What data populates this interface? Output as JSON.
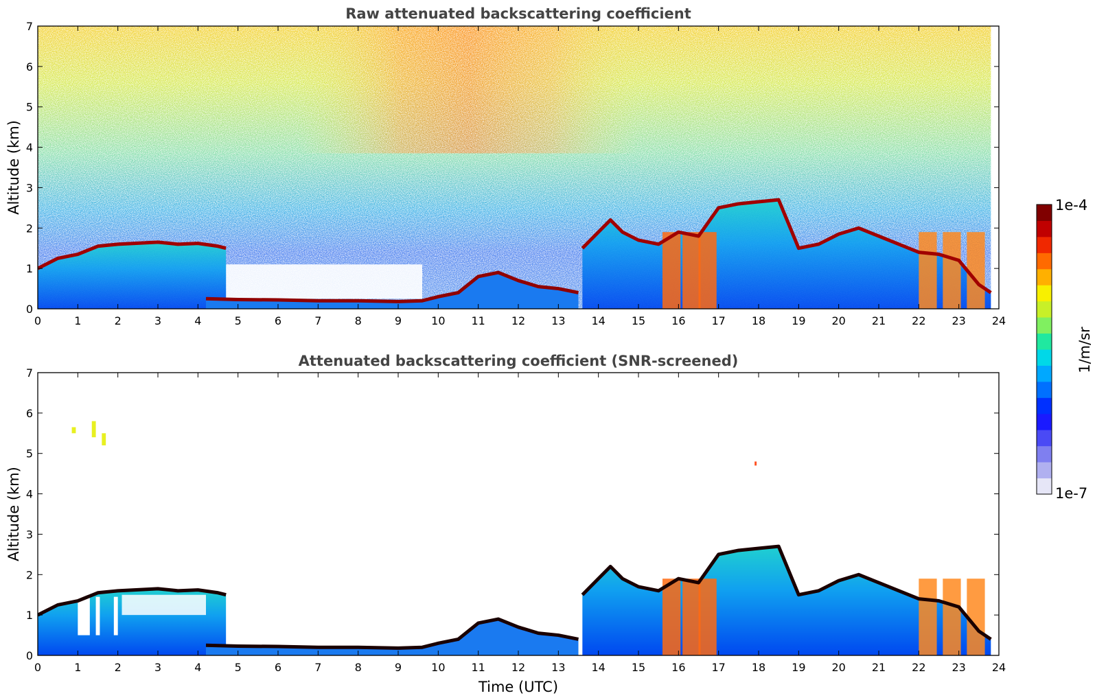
{
  "chart_data": [
    {
      "type": "heatmap",
      "title": "Raw attenuated backscattering coefficient",
      "xlabel": "",
      "ylabel": "Altitude (km)",
      "xlim": [
        0,
        24
      ],
      "ylim": [
        0,
        7
      ],
      "xticks": [
        0,
        1,
        2,
        3,
        4,
        5,
        6,
        7,
        8,
        9,
        10,
        11,
        12,
        13,
        14,
        15,
        16,
        17,
        18,
        19,
        20,
        21,
        22,
        23,
        24
      ],
      "yticks": [
        0,
        1,
        2,
        3,
        4,
        5,
        6,
        7
      ],
      "grid": false,
      "screened": false,
      "features": {
        "boundary_layer_top_km": [
          [
            0.0,
            1.0
          ],
          [
            0.5,
            1.25
          ],
          [
            1.0,
            1.35
          ],
          [
            1.5,
            1.55
          ],
          [
            2.0,
            1.6
          ],
          [
            3.0,
            1.65
          ],
          [
            3.5,
            1.6
          ],
          [
            4.0,
            1.62
          ],
          [
            4.5,
            1.55
          ],
          [
            4.7,
            1.5
          ],
          [
            13.6,
            1.5
          ],
          [
            14.0,
            1.9
          ],
          [
            14.3,
            2.2
          ],
          [
            14.6,
            1.9
          ],
          [
            15.0,
            1.7
          ],
          [
            15.5,
            1.6
          ],
          [
            16.0,
            1.9
          ],
          [
            16.5,
            1.8
          ],
          [
            17.0,
            2.5
          ],
          [
            17.5,
            2.6
          ],
          [
            18.0,
            2.65
          ],
          [
            18.5,
            2.7
          ],
          [
            19.0,
            1.5
          ],
          [
            19.5,
            1.6
          ],
          [
            20.0,
            1.85
          ],
          [
            20.5,
            2.0
          ],
          [
            21.0,
            1.8
          ],
          [
            21.5,
            1.6
          ],
          [
            22.0,
            1.4
          ],
          [
            22.5,
            1.35
          ],
          [
            23.0,
            1.2
          ],
          [
            23.5,
            0.6
          ],
          [
            23.8,
            0.4
          ]
        ],
        "near_surface_layer_top_km": [
          [
            4.2,
            0.25
          ],
          [
            5.0,
            0.23
          ],
          [
            6.0,
            0.22
          ],
          [
            7.0,
            0.2
          ],
          [
            8.0,
            0.2
          ],
          [
            9.0,
            0.18
          ],
          [
            9.6,
            0.2
          ],
          [
            10.0,
            0.3
          ],
          [
            10.5,
            0.4
          ],
          [
            11.0,
            0.8
          ],
          [
            11.5,
            0.9
          ],
          [
            12.0,
            0.7
          ],
          [
            12.5,
            0.55
          ],
          [
            13.0,
            0.5
          ],
          [
            13.5,
            0.4
          ]
        ],
        "deep_aerosol_columns_utc": [
          15.6,
          16.1,
          16.5,
          22.0,
          22.6,
          23.2
        ]
      }
    },
    {
      "type": "heatmap",
      "title": "Attenuated backscattering coefficient (SNR-screened)",
      "xlabel": "Time (UTC)",
      "ylabel": "Altitude (km)",
      "xlim": [
        0,
        24
      ],
      "ylim": [
        0,
        7
      ],
      "xticks": [
        0,
        1,
        2,
        3,
        4,
        5,
        6,
        7,
        8,
        9,
        10,
        11,
        12,
        13,
        14,
        15,
        16,
        17,
        18,
        19,
        20,
        21,
        22,
        23,
        24
      ],
      "yticks": [
        0,
        1,
        2,
        3,
        4,
        5,
        6,
        7
      ],
      "grid": false,
      "screened": true,
      "features": {
        "high_aerosol_patches": [
          {
            "utc": [
              0.85,
              0.95
            ],
            "km": [
              5.5,
              5.65
            ]
          },
          {
            "utc": [
              1.35,
              1.45
            ],
            "km": [
              5.4,
              5.8
            ]
          },
          {
            "utc": [
              1.6,
              1.7
            ],
            "km": [
              5.2,
              5.5
            ]
          },
          {
            "utc": [
              17.9,
              17.95
            ],
            "km": [
              4.7,
              4.8
            ]
          }
        ]
      }
    }
  ],
  "colorbar": {
    "label": "1/m/sr",
    "max_label": "1e-4",
    "min_label": "1e-7",
    "scale": "log",
    "range": [
      1e-07,
      0.0001
    ],
    "colors": [
      "#e6e6f7",
      "#b0b0f0",
      "#7f7ff0",
      "#4a4af5",
      "#1a1aff",
      "#0030ff",
      "#0070ff",
      "#00a8ff",
      "#00d8e8",
      "#20e8a0",
      "#80f060",
      "#c8f028",
      "#f8f000",
      "#ffb000",
      "#ff6a00",
      "#f02800",
      "#c00000",
      "#800000"
    ]
  }
}
